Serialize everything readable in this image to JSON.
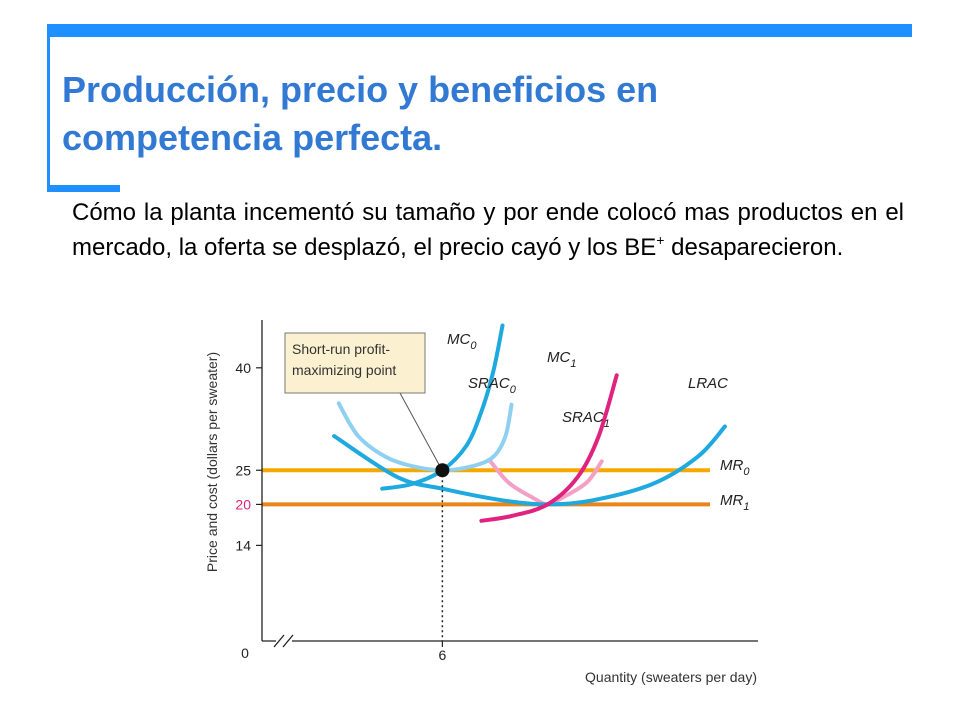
{
  "slide": {
    "title": "Producción, precio y beneficios en competencia perfecta.",
    "body_text": "Cómo la planta incementó su tamaño y por ende colocó mas productos en el mercado, la oferta se desplazó, el precio cayó y los BE",
    "body_superscript": "+",
    "body_end": " desaparecieron."
  },
  "colors": {
    "title": "#3279d4",
    "accent_bar": "#1e90ff",
    "mc0_srac0_lrac": "#1ea9df",
    "srac0_light": "#8fd0f0",
    "mc1": "#e0237f",
    "srac1": "#f4a0c5",
    "mr0": "#f5a800",
    "mr1": "#e8861a",
    "price_20_label": "#e0237f",
    "callout_fill": "#fbf0cf"
  },
  "chart_data": {
    "type": "line",
    "xlabel": "Quantity (sweaters per day)",
    "ylabel": "Price and cost (dollars per sweater)",
    "x_ticks": [
      "0",
      "6"
    ],
    "y_ticks": [
      {
        "value": 40,
        "label": "40"
      },
      {
        "value": 25,
        "label": "25"
      },
      {
        "value": 20,
        "label": "20"
      },
      {
        "value": 14,
        "label": "14"
      }
    ],
    "xlim": [
      0,
      16.5
    ],
    "ylim": [
      0,
      47
    ],
    "grid": false,
    "axis_break": true,
    "series": [
      {
        "name": "MR0",
        "label": "MR",
        "sub": "0",
        "kind": "hline",
        "y": 25
      },
      {
        "name": "MR1",
        "label": "MR",
        "sub": "1",
        "kind": "hline",
        "y": 20
      },
      {
        "name": "LRAC",
        "label": "LRAC",
        "sub": "",
        "points": [
          [
            2.4,
            30
          ],
          [
            4.5,
            24
          ],
          [
            6,
            22.3
          ],
          [
            8,
            20.6
          ],
          [
            9.5,
            20
          ],
          [
            11,
            20.6
          ],
          [
            13,
            23
          ],
          [
            14.5,
            27
          ],
          [
            15.4,
            31.4
          ]
        ]
      },
      {
        "name": "SRAC0",
        "label": "SRAC",
        "sub": "0",
        "points": [
          [
            2.55,
            34.8
          ],
          [
            3.2,
            30
          ],
          [
            4.1,
            27
          ],
          [
            5,
            25.6
          ],
          [
            6,
            25
          ],
          [
            7,
            25.6
          ],
          [
            7.7,
            27
          ],
          [
            8.1,
            30
          ],
          [
            8.3,
            34.6
          ]
        ]
      },
      {
        "name": "MC0",
        "label": "MC",
        "sub": "0",
        "points": [
          [
            4,
            22.3
          ],
          [
            5,
            23
          ],
          [
            6,
            25
          ],
          [
            6.8,
            28.6
          ],
          [
            7.3,
            33.6
          ],
          [
            7.7,
            39.6
          ],
          [
            8.0,
            46.2
          ]
        ]
      },
      {
        "name": "SRAC1",
        "label": "SRAC",
        "sub": "1",
        "points": [
          [
            7.6,
            26.3
          ],
          [
            8.2,
            23.2
          ],
          [
            9,
            21
          ],
          [
            9.5,
            20
          ],
          [
            10,
            21
          ],
          [
            10.8,
            23.2
          ],
          [
            11.3,
            26.3
          ]
        ]
      },
      {
        "name": "MC1",
        "label": "MC",
        "sub": "1",
        "points": [
          [
            7.3,
            17.6
          ],
          [
            8.3,
            18.3
          ],
          [
            9.5,
            20
          ],
          [
            10.5,
            24
          ],
          [
            11.2,
            30
          ],
          [
            11.8,
            38.9
          ]
        ]
      }
    ],
    "point": {
      "x": 6,
      "y": 25,
      "annotation": "Short-run profit-maximizing point"
    },
    "callout_lines": [
      "Short-run profit-",
      "maximizing point"
    ]
  }
}
